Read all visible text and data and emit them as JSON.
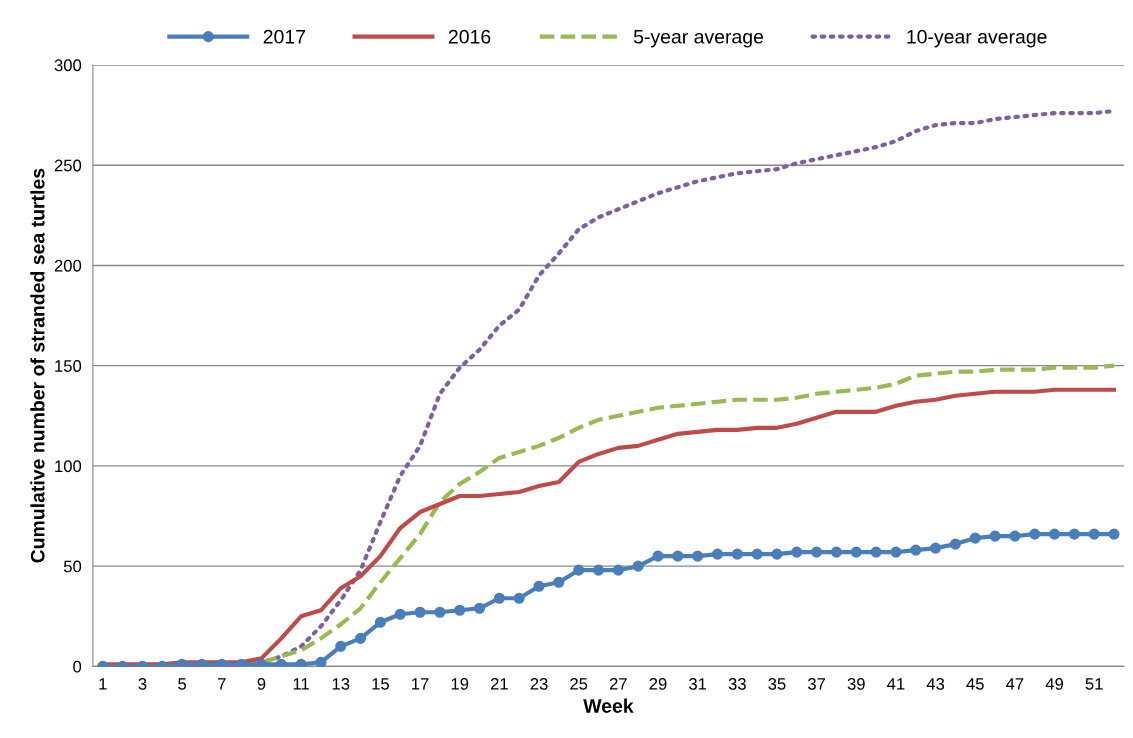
{
  "chart_data": {
    "type": "line",
    "xlabel": "Week",
    "ylabel": "Cumulative number of stranded sea turtles",
    "categories": [
      "1",
      null,
      "3",
      null,
      "5",
      null,
      "7",
      null,
      "9",
      null,
      "11",
      null,
      "13",
      null,
      "15",
      null,
      "17",
      null,
      "19",
      null,
      "21",
      null,
      "23",
      null,
      "25",
      null,
      "27",
      null,
      "29",
      null,
      "31",
      null,
      "33",
      null,
      "35",
      null,
      "37",
      null,
      "39",
      null,
      "41",
      null,
      "43",
      null,
      "45",
      null,
      "47",
      null,
      "49",
      null,
      "51",
      null
    ],
    "ylim": [
      0,
      300
    ],
    "yticks": [
      0,
      50,
      100,
      150,
      200,
      250,
      300
    ],
    "grid": "y",
    "legend": "top",
    "series": [
      {
        "name": "2017",
        "color": "#4a7ebb",
        "marker": "circle",
        "line_style": "solid",
        "values": [
          0,
          0,
          0,
          0,
          1,
          1,
          1,
          1,
          1,
          1,
          1,
          2,
          10,
          14,
          22,
          26,
          27,
          27,
          28,
          29,
          34,
          34,
          40,
          42,
          48,
          48,
          48,
          50,
          55,
          55,
          55,
          56,
          56,
          56,
          56,
          57,
          57,
          57,
          57,
          57,
          57,
          58,
          59,
          61,
          64,
          65,
          65,
          66,
          66,
          66,
          66,
          66
        ]
      },
      {
        "name": "2016",
        "color": "#be4b48",
        "marker": "none",
        "line_style": "solid",
        "values": [
          1,
          1,
          1,
          1,
          2,
          2,
          2,
          2,
          4,
          14,
          25,
          28,
          39,
          45,
          55,
          69,
          77,
          81,
          85,
          85,
          86,
          87,
          90,
          92,
          102,
          106,
          109,
          110,
          113,
          116,
          117,
          118,
          118,
          119,
          119,
          121,
          124,
          127,
          127,
          127,
          130,
          132,
          133,
          135,
          136,
          137,
          137,
          137,
          138,
          138,
          138,
          138
        ]
      },
      {
        "name": "5-year average",
        "color": "#98b954",
        "marker": "none",
        "line_style": "dashed",
        "values": [
          null,
          null,
          null,
          null,
          null,
          null,
          null,
          1,
          2,
          5,
          8,
          14,
          21,
          29,
          42,
          54,
          66,
          82,
          91,
          97,
          104,
          107,
          110,
          114,
          119,
          123,
          125,
          127,
          129,
          130,
          131,
          132,
          133,
          133,
          133,
          134,
          136,
          137,
          138,
          139,
          141,
          145,
          146,
          147,
          147,
          148,
          148,
          148,
          149,
          149,
          149,
          150
        ]
      },
      {
        "name": "10-year average",
        "color": "#7d60a0",
        "marker": "none",
        "line_style": "dotted",
        "values": [
          0,
          0,
          0,
          0,
          0,
          0,
          0,
          1,
          2,
          5,
          10,
          20,
          33,
          48,
          72,
          95,
          110,
          136,
          149,
          158,
          170,
          178,
          195,
          206,
          218,
          224,
          228,
          232,
          236,
          239,
          242,
          244,
          246,
          247,
          248,
          251,
          253,
          255,
          257,
          259,
          262,
          267,
          270,
          271,
          271,
          273,
          274,
          275,
          276,
          276,
          276,
          277
        ]
      }
    ]
  }
}
